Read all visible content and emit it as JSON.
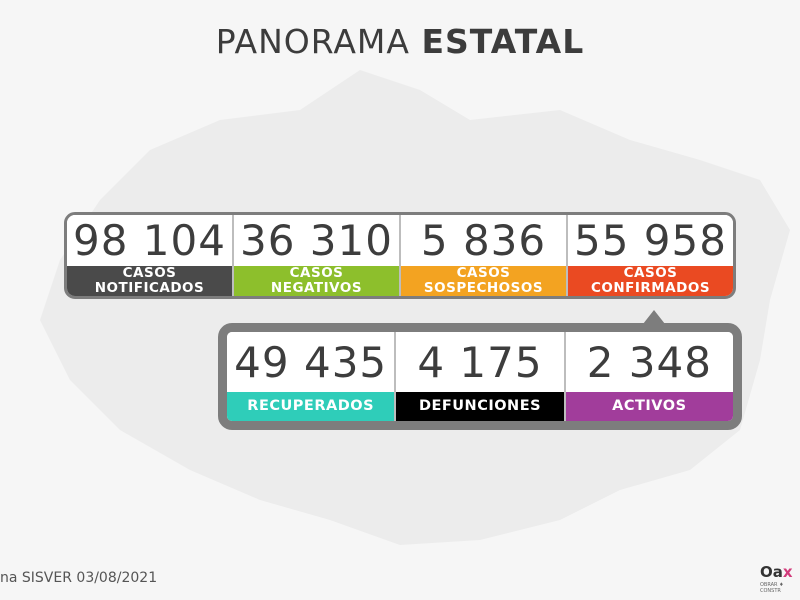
{
  "title": {
    "light": "PANORAMA",
    "bold": "ESTATAL"
  },
  "row1": [
    {
      "value": "98 104",
      "label_line1": "CASOS",
      "label_line2": "NOTIFICADOS",
      "color": "#4a4a4a"
    },
    {
      "value": "36 310",
      "label_line1": "CASOS",
      "label_line2": "NEGATIVOS",
      "color": "#8dbf2c"
    },
    {
      "value": "5 836",
      "label_line1": "CASOS",
      "label_line2": "SOSPECHOSOS",
      "color": "#f3a321"
    },
    {
      "value": "55 958",
      "label_line1": "CASOS",
      "label_line2": "CONFIRMADOS",
      "color": "#ea4a22"
    }
  ],
  "row2": [
    {
      "value": "49 435",
      "label": "RECUPERADOS",
      "color": "#2fcdb9"
    },
    {
      "value": "4 175",
      "label": "DEFUNCIONES",
      "color": "#000000"
    },
    {
      "value": "2 348",
      "label": "ACTIVOS",
      "color": "#a13d9b"
    }
  ],
  "footer": "na SISVER 03/08/2021",
  "logo": {
    "text": "Oa",
    "x": "x",
    "sub": "OBRAR ♦ CONSTR"
  },
  "colors": {
    "frame": "#7d7d7d",
    "map": "#ececec"
  },
  "icons": [
    "oaxaca-map-silhouette",
    "speech-pointer"
  ]
}
